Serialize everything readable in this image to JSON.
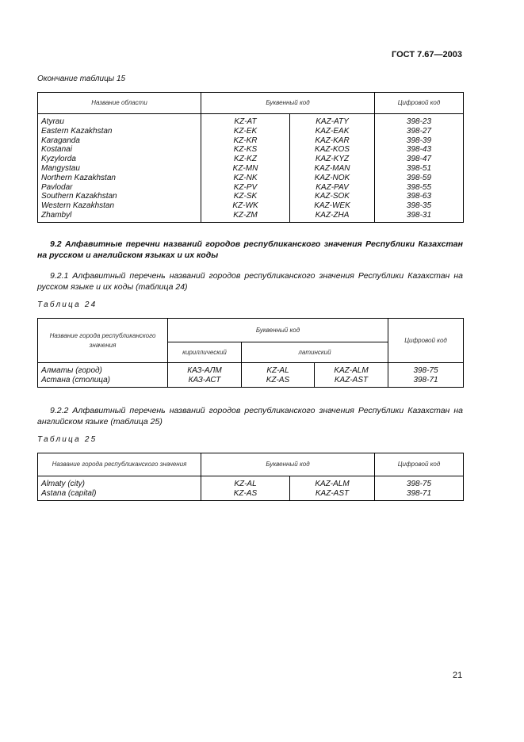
{
  "header": {
    "standard": "ГОСТ 7.67—2003"
  },
  "table15": {
    "caption": "Окончание таблицы 15",
    "headers": [
      "Название области",
      "Буквенный код",
      "Цифровой код"
    ],
    "rows": [
      [
        "Atyrau",
        "KZ-AT",
        "KAZ-ATY",
        "398-23"
      ],
      [
        "Eastern Kazakhstan",
        "KZ-EK",
        "KAZ-EAK",
        "398-27"
      ],
      [
        "Karaganda",
        "KZ-KR",
        "KAZ-KAR",
        "398-39"
      ],
      [
        "Kostanai",
        "KZ-KS",
        "KAZ-KOS",
        "398-43"
      ],
      [
        "Kyzylorda",
        "KZ-KZ",
        "KAZ-KYZ",
        "398-47"
      ],
      [
        "Mangystau",
        "KZ-MN",
        "KAZ-MAN",
        "398-51"
      ],
      [
        "Northern Kazakhstan",
        "KZ-NK",
        "KAZ-NOK",
        "398-59"
      ],
      [
        "Pavlodar",
        "KZ-PV",
        "KAZ-PAV",
        "398-55"
      ],
      [
        "Southern Kazakhstan",
        "KZ-SK",
        "KAZ-SOK",
        "398-63"
      ],
      [
        "Western Kazakhstan",
        "KZ-WK",
        "KAZ-WEK",
        "398-35"
      ],
      [
        "Zhambyl",
        "KZ-ZM",
        "KAZ-ZHA",
        "398-31"
      ]
    ]
  },
  "section92": {
    "title": "9.2 Алфавитные перечни названий городов республиканского значения Республики Казахстан на русском и английском языках и их коды"
  },
  "section921": {
    "text": "9.2.1 Алфавитный перечень названий городов республиканского значения Республики Казахстан на русском языке и их коды (таблица 24)"
  },
  "table24": {
    "caption": "Таблица 24",
    "headers": {
      "name": "Название города республиканского значения",
      "letter": "Буквенный код",
      "cyr": "кириллический",
      "lat": "латинский",
      "digit": "Цифровой код"
    },
    "rows": [
      [
        "Алматы (город)",
        "КАЗ-АЛМ",
        "KZ-AL",
        "KAZ-ALM",
        "398-75"
      ],
      [
        "Астана (столица)",
        "КАЗ-АСТ",
        "KZ-AS",
        "KAZ-AST",
        "398-71"
      ]
    ]
  },
  "section922": {
    "text": "9.2.2 Алфавитный перечень названий городов республиканского значения Республики Казахстан на английском языке (таблица 25)"
  },
  "table25": {
    "caption": "Таблица 25",
    "headers": [
      "Название города республиканского значения",
      "Буквенный код",
      "Цифровой код"
    ],
    "rows": [
      [
        "Almaty (city)",
        "KZ-AL",
        "KAZ-ALM",
        "398-75"
      ],
      [
        "Astana (capital)",
        "KZ-AS",
        "KAZ-AST",
        "398-71"
      ]
    ]
  },
  "footer": {
    "page_number": "21"
  }
}
